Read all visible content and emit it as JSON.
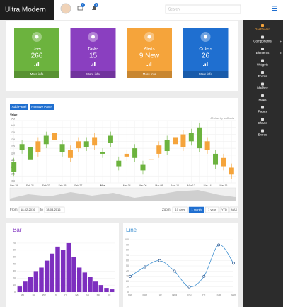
{
  "header": {
    "logo": "Ultra Modern",
    "badges": [
      "3",
      "3"
    ],
    "search": "Search"
  },
  "sidebar": {
    "items": [
      "Dashboard",
      "Components",
      "Elements",
      "Widgets",
      "Forms",
      "Mailbox",
      "Maps",
      "Pages",
      "Charts",
      "Extras"
    ],
    "active": 0
  },
  "stats": [
    {
      "title": "User",
      "value": "266",
      "link": "More info",
      "color": "#6cb33e"
    },
    {
      "title": "Tasks",
      "value": "15",
      "link": "More info",
      "color": "#8a3fc0"
    },
    {
      "title": "Alerts",
      "value": "9 New",
      "link": "More info",
      "color": "#f5a43b"
    },
    {
      "title": "Orders",
      "value": "26",
      "link": "More info",
      "color": "#1f6fd0"
    }
  ],
  "chart_data": [
    {
      "type": "candlestick",
      "buttons": [
        "Add Panel",
        "Remove Panel"
      ],
      "y_label": "Value",
      "credit": "JS chart by amCharts",
      "categories": [
        "Feb 19",
        null,
        "Feb 21",
        null,
        "Feb 23",
        null,
        "Feb 25",
        null,
        "Feb 27",
        null,
        null,
        "Mar",
        null,
        null,
        "Mar 04",
        null,
        "Mar 06",
        null,
        "Mar 08",
        null,
        "Mar 10",
        null,
        "Mar 12",
        null,
        "Mar 14",
        null,
        "Mar 16",
        null
      ],
      "open": [
        115,
        128,
        126,
        122,
        134,
        131,
        128,
        118,
        125,
        130,
        127,
        122,
        134,
        116,
        119,
        125,
        113,
        117,
        121,
        131,
        128,
        126,
        136,
        140,
        124,
        121,
        112,
        106
      ],
      "close": [
        108,
        124,
        117,
        130,
        128,
        136,
        122,
        124,
        130,
        126,
        133,
        121,
        129,
        112,
        121,
        118,
        109,
        117,
        127,
        123,
        133,
        135,
        130,
        125,
        130,
        113,
        118,
        111
      ],
      "high": [
        118,
        131,
        129,
        133,
        137,
        139,
        131,
        127,
        133,
        133,
        136,
        125,
        137,
        119,
        124,
        128,
        116,
        120,
        130,
        134,
        136,
        138,
        139,
        143,
        133,
        124,
        121,
        114
      ],
      "low": [
        105,
        121,
        114,
        119,
        125,
        128,
        119,
        115,
        122,
        123,
        124,
        118,
        126,
        109,
        116,
        115,
        106,
        114,
        118,
        120,
        125,
        123,
        127,
        122,
        121,
        110,
        109,
        103
      ],
      "up_color": "#f5a43b",
      "down_color": "#6cb33e",
      "ylim": [
        100,
        145
      ],
      "yticks": [
        100,
        105,
        110,
        115,
        120,
        125,
        130,
        135,
        140,
        145
      ],
      "grid": true,
      "from_label": "From:",
      "from": "18-02-2016",
      "to_label": "to",
      "to": "18-03-2016",
      "zoom_label": "Zoom:",
      "zoom": [
        "10 days",
        "1 month",
        "1 year",
        "YTD",
        "MAX"
      ],
      "zoom_active": 1
    },
    {
      "type": "bar",
      "title": "Bar",
      "color": "#7d2fbf",
      "categories": [
        "Mo",
        null,
        "Tu",
        null,
        "We",
        null,
        "Th",
        null,
        "Fr",
        null,
        "Sa",
        null,
        "Su",
        null,
        "Mo",
        null,
        "Tu",
        null
      ],
      "values": [
        8,
        15,
        22,
        30,
        35,
        45,
        55,
        65,
        60,
        70,
        50,
        35,
        28,
        22,
        15,
        10,
        6,
        4
      ],
      "ylim": [
        0,
        75
      ],
      "yticks": [
        0,
        10,
        20,
        30,
        40,
        50,
        60,
        70
      ],
      "grid": true
    },
    {
      "type": "line",
      "title": "Line",
      "color": "#3d8fd0",
      "categories": [
        "Sun",
        "Mon",
        "Tue",
        "Wed",
        "Thu",
        "Fri",
        "Sat",
        "Sun"
      ],
      "values": [
        30,
        48,
        60,
        40,
        10,
        30,
        90,
        55
      ],
      "ylim": [
        0,
        100
      ],
      "yticks": [
        0,
        10,
        20,
        30,
        40,
        50,
        60,
        70,
        80,
        90,
        100
      ],
      "grid": true
    }
  ]
}
